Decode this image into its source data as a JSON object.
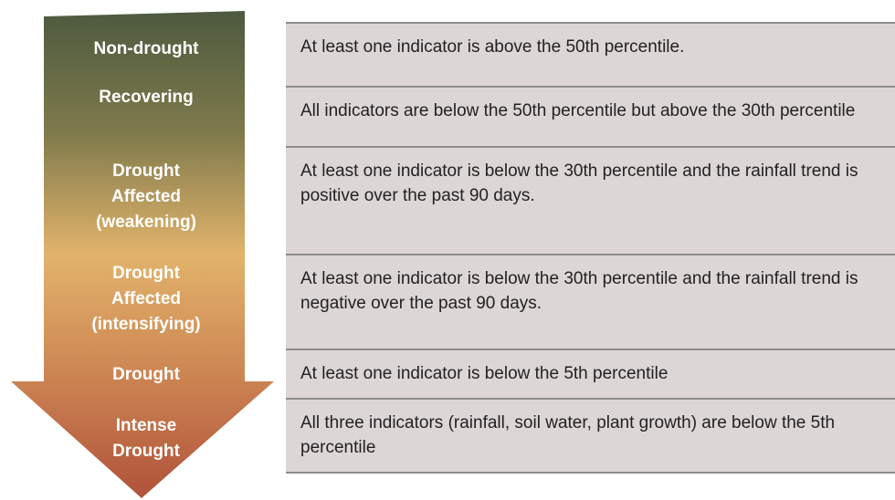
{
  "levels": [
    {
      "label_lines": [
        "Non-drought"
      ],
      "description": "At least one indicator is above the 50th percentile."
    },
    {
      "label_lines": [
        "Recovering"
      ],
      "description": "All indicators are below the 50th percentile but above the 30th percentile"
    },
    {
      "label_lines": [
        "Drought",
        "Affected",
        "(weakening)"
      ],
      "description": "At least one indicator is below the 30th percentile and the rainfall trend is positive over the past 90 days."
    },
    {
      "label_lines": [
        "Drought",
        "Affected",
        "(intensifying)"
      ],
      "description": "At least one indicator is below the 30th percentile and the rainfall trend is negative over the past 90 days."
    },
    {
      "label_lines": [
        "Drought"
      ],
      "description": "At least one indicator is below the 5th percentile"
    },
    {
      "label_lines": [
        "Intense",
        "Drought"
      ],
      "description": "All three indicators (rainfall, soil water, plant growth) are below the 5th percentile"
    }
  ]
}
